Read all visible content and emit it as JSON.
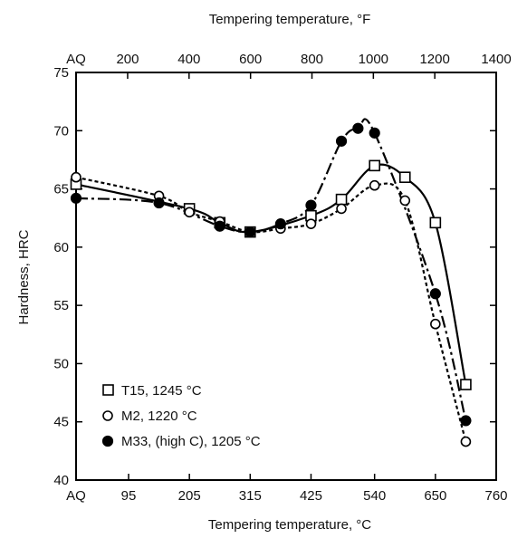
{
  "chart_data": {
    "type": "line",
    "title": "",
    "xlabel": "Tempering temperature, °C",
    "x2label": "Tempering temperature, °F",
    "ylabel": "Hardness, HRC",
    "xlim": [
      0,
      760
    ],
    "ylim": [
      40,
      75
    ],
    "x_ticks": [
      {
        "value": 0,
        "label": "AQ"
      },
      {
        "value": 95,
        "label": "95"
      },
      {
        "value": 205,
        "label": "205"
      },
      {
        "value": 315,
        "label": "315"
      },
      {
        "value": 425,
        "label": "425"
      },
      {
        "value": 540,
        "label": "540"
      },
      {
        "value": 650,
        "label": "650"
      },
      {
        "value": 760,
        "label": "760"
      }
    ],
    "x2_ticks": [
      {
        "value": 0,
        "label": "AQ"
      },
      {
        "value": 93.3,
        "label": "200"
      },
      {
        "value": 204.4,
        "label": "400"
      },
      {
        "value": 315.6,
        "label": "600"
      },
      {
        "value": 426.7,
        "label": "800"
      },
      {
        "value": 537.8,
        "label": "1000"
      },
      {
        "value": 648.9,
        "label": "1200"
      },
      {
        "value": 760,
        "label": "1400"
      }
    ],
    "y_ticks": [
      {
        "value": 40,
        "label": "40"
      },
      {
        "value": 45,
        "label": "45"
      },
      {
        "value": 50,
        "label": "50"
      },
      {
        "value": 55,
        "label": "55"
      },
      {
        "value": 60,
        "label": "60"
      },
      {
        "value": 65,
        "label": "65"
      },
      {
        "value": 70,
        "label": "70"
      },
      {
        "value": 75,
        "label": "75"
      }
    ],
    "grid": false,
    "legend_position": "bottom-left",
    "series": [
      {
        "name": "T15, 1245 °C",
        "marker": "square-open",
        "line_style": "solid",
        "points": [
          {
            "x": 0,
            "y": 65.4
          },
          {
            "x": 205,
            "y": 63.3
          },
          {
            "x": 260,
            "y": 62.1
          },
          {
            "x": 315,
            "y": 61.3
          },
          {
            "x": 425,
            "y": 62.7
          },
          {
            "x": 480,
            "y": 64.1
          },
          {
            "x": 540,
            "y": 67.0
          },
          {
            "x": 595,
            "y": 66.0
          },
          {
            "x": 650,
            "y": 62.1
          },
          {
            "x": 705,
            "y": 48.2
          }
        ]
      },
      {
        "name": "M2, 1220 °C",
        "marker": "circle-open",
        "line_style": "dashed",
        "points": [
          {
            "x": 0,
            "y": 66.0
          },
          {
            "x": 150,
            "y": 64.4
          },
          {
            "x": 205,
            "y": 63.0
          },
          {
            "x": 260,
            "y": 62.2
          },
          {
            "x": 315,
            "y": 61.3
          },
          {
            "x": 370,
            "y": 61.6
          },
          {
            "x": 425,
            "y": 62.0
          },
          {
            "x": 480,
            "y": 63.3
          },
          {
            "x": 540,
            "y": 65.3
          },
          {
            "x": 595,
            "y": 64.0
          },
          {
            "x": 650,
            "y": 53.4
          },
          {
            "x": 705,
            "y": 43.3
          }
        ]
      },
      {
        "name": "M33, (high C), 1205 °C",
        "marker": "circle-filled",
        "line_style": "dash-dot",
        "points": [
          {
            "x": 0,
            "y": 64.2
          },
          {
            "x": 150,
            "y": 63.8
          },
          {
            "x": 260,
            "y": 61.8
          },
          {
            "x": 315,
            "y": 61.3
          },
          {
            "x": 370,
            "y": 62.0
          },
          {
            "x": 425,
            "y": 63.6
          },
          {
            "x": 480,
            "y": 69.1
          },
          {
            "x": 510,
            "y": 70.2
          },
          {
            "x": 540,
            "y": 69.8
          },
          {
            "x": 650,
            "y": 56.0
          },
          {
            "x": 705,
            "y": 45.1
          }
        ]
      }
    ]
  }
}
